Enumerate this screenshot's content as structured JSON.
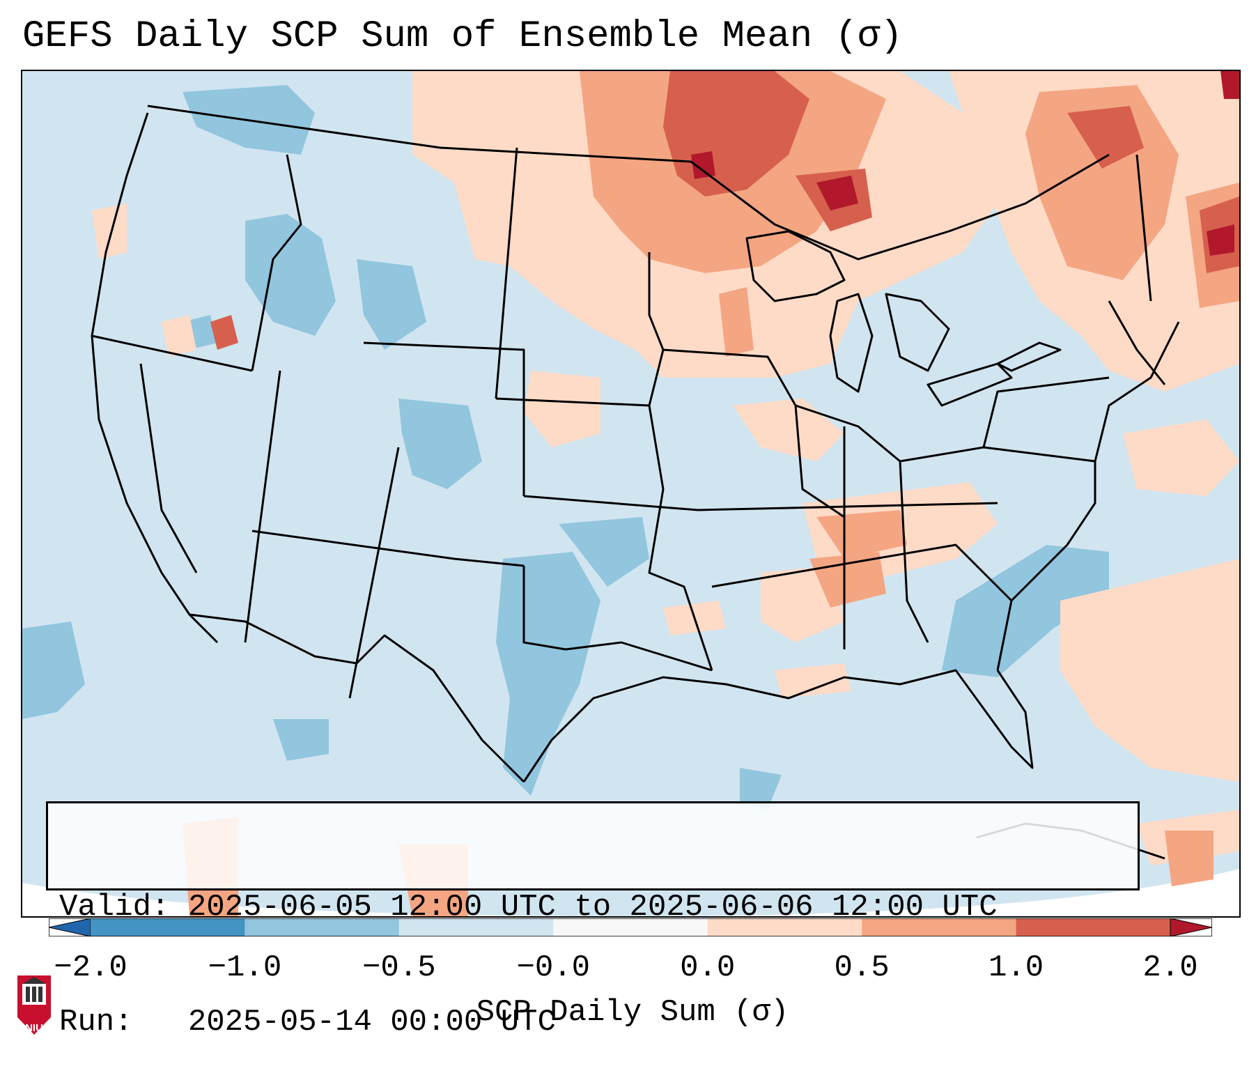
{
  "title": "GEFS Daily SCP Sum of Ensemble Mean (σ)",
  "info": {
    "valid_line": "Valid: 2025-06-05 12:00 UTC to 2025-06-06 12:00 UTC",
    "run_line": "Run:   2025-05-14 00:00 UTC"
  },
  "colorbar": {
    "label": "SCP Daily Sum (σ)",
    "ticks": [
      "−2.0",
      "−1.0",
      "−0.5",
      "−0.0",
      "0.0",
      "0.5",
      "1.0",
      "2.0"
    ],
    "bins": [
      {
        "from": -2.0,
        "to": -1.0,
        "color": "#4393c3"
      },
      {
        "from": -1.0,
        "to": -0.5,
        "color": "#92c5de"
      },
      {
        "from": -0.5,
        "to": -0.0,
        "color": "#d1e5f0"
      },
      {
        "from": -0.0,
        "to": 0.0,
        "color": "#f7f7f7"
      },
      {
        "from": 0.0,
        "to": 0.5,
        "color": "#fddbc7"
      },
      {
        "from": 0.5,
        "to": 1.0,
        "color": "#f4a582"
      },
      {
        "from": 1.0,
        "to": 2.0,
        "color": "#d6604d"
      }
    ],
    "under_color": "#2166ac",
    "over_color": "#b2182b"
  },
  "logo": {
    "text": "NIU",
    "color": "#c8102e"
  },
  "map": {
    "background_color": "#d1e5f0",
    "border_color": "#000000",
    "anomaly_regions": [
      {
        "region": "Upper Midwest / Great Lakes",
        "level": "1.0 to 2.0"
      },
      {
        "region": "Canadian Prairies",
        "level": "0.5 to 1.0"
      },
      {
        "region": "New England / Maritimes",
        "level": "1.0 to 2.0"
      },
      {
        "region": "Tennessee Valley",
        "level": "0.5 to 1.0"
      },
      {
        "region": "Idaho / Wyoming",
        "level": "-1.0 to -0.5"
      },
      {
        "region": "West Texas",
        "level": "-1.0 to -0.5"
      },
      {
        "region": "Southeast Atlantic Coast",
        "level": "-1.0 to -0.5"
      }
    ]
  }
}
